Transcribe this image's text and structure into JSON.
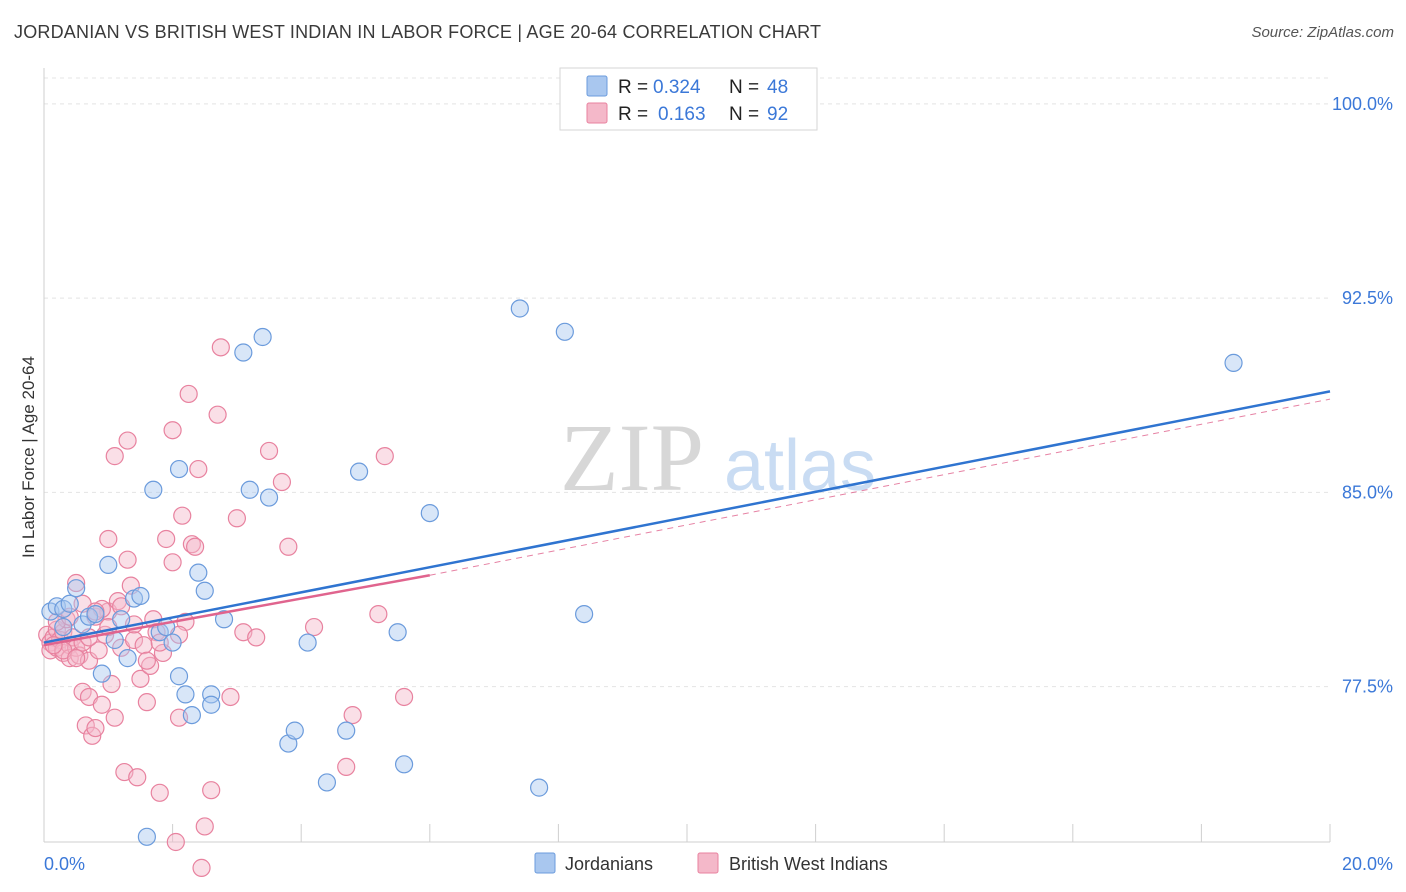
{
  "title": "JORDANIAN VS BRITISH WEST INDIAN IN LABOR FORCE | AGE 20-64 CORRELATION CHART",
  "source": "Source: ZipAtlas.com",
  "watermark": {
    "zip": "ZIP",
    "atlas": "atlas"
  },
  "colors": {
    "blue_fill": "#a9c7ef",
    "blue_stroke": "#6b9bdc",
    "blue_line": "#2f74d0",
    "pink_fill": "#f4b8c9",
    "pink_stroke": "#e8829f",
    "pink_line": "#e0648e",
    "value_text": "#3b78d8",
    "grid": "#e4e4e4"
  },
  "stats_legend": [
    {
      "r_label": "R =",
      "r_value": "0.324",
      "n_label": "N =",
      "n_value": "48",
      "color": "blue"
    },
    {
      "r_label": "R =",
      "r_value": "0.163",
      "n_label": "N =",
      "n_value": "92",
      "color": "pink"
    }
  ],
  "chart_data": {
    "type": "scatter",
    "xlabel": "",
    "ylabel": "In Labor Force | Age 20-64",
    "xlim": [
      0,
      20
    ],
    "ylim": [
      71.5,
      101
    ],
    "x_tick_labels": [
      {
        "value": 0,
        "label": "0.0%"
      },
      {
        "value": 20,
        "label": "20.0%"
      }
    ],
    "y_ticks": [
      {
        "value": 100.0,
        "label": "100.0%"
      },
      {
        "value": 92.5,
        "label": "92.5%"
      },
      {
        "value": 85.0,
        "label": "85.0%"
      },
      {
        "value": 77.5,
        "label": "77.5%"
      }
    ],
    "x_minor_ticks": [
      2,
      4,
      6,
      8,
      10,
      12,
      14,
      16,
      18,
      20
    ],
    "grid": true,
    "legend_position": "bottom",
    "series": [
      {
        "name": "Jordanians",
        "color": "blue",
        "trend": {
          "x": [
            0,
            20
          ],
          "y": [
            79.2,
            88.9
          ],
          "dashed_ext": false
        },
        "points": [
          [
            0.1,
            80.4
          ],
          [
            0.2,
            80.6
          ],
          [
            0.3,
            80.5
          ],
          [
            0.4,
            80.7
          ],
          [
            0.5,
            81.3
          ],
          [
            0.6,
            79.9
          ],
          [
            0.7,
            80.2
          ],
          [
            0.8,
            80.3
          ],
          [
            0.9,
            78.0
          ],
          [
            1.0,
            82.2
          ],
          [
            1.1,
            79.3
          ],
          [
            1.2,
            80.1
          ],
          [
            1.3,
            78.6
          ],
          [
            1.4,
            80.9
          ],
          [
            1.5,
            81.0
          ],
          [
            1.6,
            71.7
          ],
          [
            1.7,
            85.1
          ],
          [
            1.8,
            79.6
          ],
          [
            1.9,
            79.8
          ],
          [
            2.0,
            79.2
          ],
          [
            2.1,
            85.9
          ],
          [
            2.1,
            77.9
          ],
          [
            2.2,
            77.2
          ],
          [
            2.3,
            76.4
          ],
          [
            2.4,
            81.9
          ],
          [
            2.5,
            81.2
          ],
          [
            2.6,
            77.2
          ],
          [
            2.6,
            76.8
          ],
          [
            2.8,
            80.1
          ],
          [
            3.1,
            90.4
          ],
          [
            3.2,
            85.1
          ],
          [
            3.4,
            91.0
          ],
          [
            3.5,
            84.8
          ],
          [
            3.8,
            75.3
          ],
          [
            3.9,
            75.8
          ],
          [
            4.1,
            79.2
          ],
          [
            4.4,
            73.8
          ],
          [
            4.7,
            75.8
          ],
          [
            4.9,
            85.8
          ],
          [
            5.5,
            79.6
          ],
          [
            5.6,
            74.5
          ],
          [
            6.0,
            84.2
          ],
          [
            7.4,
            92.1
          ],
          [
            7.7,
            73.6
          ],
          [
            8.1,
            91.2
          ],
          [
            8.4,
            80.3
          ],
          [
            18.5,
            90.0
          ],
          [
            0.3,
            79.8
          ]
        ]
      },
      {
        "name": "British West Indians",
        "color": "pink",
        "trend": {
          "x": [
            0,
            6
          ],
          "y": [
            79.1,
            81.8
          ],
          "dashed_ext": true,
          "ext_x": [
            6,
            20
          ],
          "ext_y": [
            81.8,
            88.6
          ]
        },
        "points": [
          [
            0.05,
            79.5
          ],
          [
            0.1,
            79.2
          ],
          [
            0.1,
            78.9
          ],
          [
            0.15,
            79.4
          ],
          [
            0.2,
            79.7
          ],
          [
            0.2,
            79.0
          ],
          [
            0.25,
            79.3
          ],
          [
            0.3,
            78.8
          ],
          [
            0.3,
            79.6
          ],
          [
            0.35,
            80.1
          ],
          [
            0.4,
            79.1
          ],
          [
            0.4,
            78.6
          ],
          [
            0.45,
            79.4
          ],
          [
            0.5,
            79.0
          ],
          [
            0.5,
            81.5
          ],
          [
            0.55,
            78.7
          ],
          [
            0.6,
            77.3
          ],
          [
            0.6,
            79.2
          ],
          [
            0.65,
            76.0
          ],
          [
            0.7,
            77.1
          ],
          [
            0.7,
            78.5
          ],
          [
            0.75,
            75.6
          ],
          [
            0.8,
            75.9
          ],
          [
            0.8,
            80.2
          ],
          [
            0.85,
            78.9
          ],
          [
            0.9,
            76.8
          ],
          [
            0.95,
            79.5
          ],
          [
            1.0,
            80.4
          ],
          [
            1.0,
            83.2
          ],
          [
            1.05,
            77.6
          ],
          [
            1.1,
            76.3
          ],
          [
            1.15,
            80.8
          ],
          [
            1.2,
            79.0
          ],
          [
            1.25,
            74.2
          ],
          [
            1.3,
            82.4
          ],
          [
            1.35,
            81.4
          ],
          [
            1.4,
            79.3
          ],
          [
            1.45,
            74.0
          ],
          [
            1.5,
            77.8
          ],
          [
            1.55,
            79.1
          ],
          [
            1.6,
            76.9
          ],
          [
            1.65,
            78.3
          ],
          [
            1.7,
            80.1
          ],
          [
            1.75,
            79.6
          ],
          [
            1.8,
            73.4
          ],
          [
            1.85,
            78.8
          ],
          [
            1.9,
            83.2
          ],
          [
            2.0,
            87.4
          ],
          [
            2.0,
            82.3
          ],
          [
            2.05,
            71.5
          ],
          [
            2.1,
            76.3
          ],
          [
            2.15,
            84.1
          ],
          [
            2.2,
            80.0
          ],
          [
            2.25,
            88.8
          ],
          [
            2.3,
            83.0
          ],
          [
            2.35,
            82.9
          ],
          [
            2.4,
            85.9
          ],
          [
            2.45,
            70.5
          ],
          [
            2.5,
            72.1
          ],
          [
            2.6,
            73.5
          ],
          [
            2.7,
            88.0
          ],
          [
            2.75,
            90.6
          ],
          [
            2.9,
            77.1
          ],
          [
            3.0,
            84.0
          ],
          [
            3.1,
            79.6
          ],
          [
            3.3,
            79.4
          ],
          [
            3.5,
            86.6
          ],
          [
            3.7,
            85.4
          ],
          [
            3.8,
            82.9
          ],
          [
            4.2,
            79.8
          ],
          [
            4.7,
            74.4
          ],
          [
            4.8,
            76.4
          ],
          [
            5.2,
            80.3
          ],
          [
            5.3,
            86.4
          ],
          [
            5.6,
            77.1
          ],
          [
            1.1,
            86.4
          ],
          [
            1.3,
            87.0
          ],
          [
            0.6,
            80.7
          ],
          [
            0.9,
            80.5
          ],
          [
            1.6,
            78.5
          ],
          [
            0.2,
            80.0
          ],
          [
            0.4,
            80.2
          ],
          [
            0.3,
            78.9
          ],
          [
            1.8,
            79.2
          ],
          [
            2.1,
            79.5
          ],
          [
            0.7,
            79.4
          ],
          [
            0.5,
            78.6
          ],
          [
            1.0,
            79.8
          ],
          [
            1.2,
            80.6
          ],
          [
            0.8,
            80.4
          ],
          [
            1.4,
            79.9
          ],
          [
            0.15,
            79.1
          ]
        ]
      }
    ]
  },
  "bottom_legend": [
    {
      "label": "Jordanians",
      "color": "blue"
    },
    {
      "label": "British West Indians",
      "color": "pink"
    }
  ]
}
